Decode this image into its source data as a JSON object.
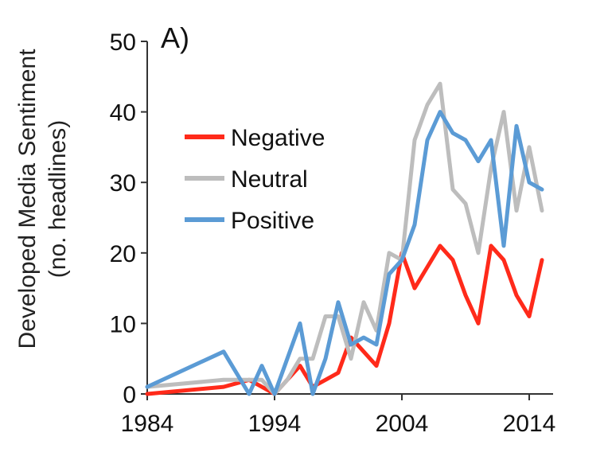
{
  "chart_data": {
    "type": "line",
    "panel_label": "A)",
    "ylabel_line1": "Developed Media Sentiment",
    "ylabel_line2": "(no. headlines)",
    "xlabel": "",
    "xlim": [
      1984,
      2015
    ],
    "ylim": [
      0,
      50
    ],
    "x_ticks": [
      1984,
      1994,
      2004,
      2014
    ],
    "y_ticks": [
      0,
      10,
      20,
      30,
      40,
      50
    ],
    "grid": false,
    "legend_position": "top-left",
    "series": [
      {
        "name": "Negative",
        "color": "#ff2a1a",
        "x": [
          1984,
          1990,
          1992,
          1993,
          1994,
          1996,
          1997,
          1998,
          1999,
          2000,
          2001,
          2002,
          2003,
          2004,
          2005,
          2006,
          2007,
          2008,
          2009,
          2010,
          2011,
          2012,
          2013,
          2014,
          2015
        ],
        "y": [
          0,
          1,
          2,
          1,
          0,
          4,
          1,
          2,
          3,
          8,
          6,
          4,
          10,
          20,
          15,
          18,
          21,
          19,
          14,
          10,
          21,
          19,
          14,
          11,
          19
        ]
      },
      {
        "name": "Neutral",
        "color": "#bdbdbd",
        "x": [
          1984,
          1990,
          1992,
          1993,
          1994,
          1995,
          1996,
          1997,
          1998,
          1999,
          2000,
          2001,
          2002,
          2003,
          2004,
          2005,
          2006,
          2007,
          2008,
          2009,
          2010,
          2011,
          2012,
          2013,
          2014,
          2015
        ],
        "y": [
          1,
          2,
          2,
          2,
          0,
          2,
          5,
          5,
          11,
          11,
          5,
          13,
          9,
          20,
          19,
          36,
          41,
          44,
          29,
          27,
          20,
          32,
          40,
          26,
          35,
          26
        ]
      },
      {
        "name": "Positive",
        "color": "#5b9bd5",
        "x": [
          1984,
          1990,
          1992,
          1993,
          1994,
          1996,
          1997,
          1998,
          1999,
          2000,
          2001,
          2002,
          2003,
          2004,
          2005,
          2006,
          2007,
          2008,
          2009,
          2010,
          2011,
          2012,
          2013,
          2014,
          2015
        ],
        "y": [
          1,
          6,
          0,
          4,
          0,
          10,
          0,
          5,
          13,
          7,
          8,
          7,
          17,
          19,
          24,
          36,
          40,
          37,
          36,
          33,
          36,
          21,
          38,
          30,
          29
        ]
      }
    ]
  }
}
